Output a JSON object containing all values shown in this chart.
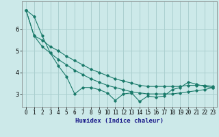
{
  "xlabel": "Humidex (Indice chaleur)",
  "ylabel": "",
  "bg_color": "#cce9e9",
  "grid_color": "#aacfcf",
  "line_color": "#1a7a6a",
  "xlim": [
    -0.5,
    23.5
  ],
  "ylim": [
    2.4,
    7.3
  ],
  "xticks": [
    0,
    1,
    2,
    3,
    4,
    5,
    6,
    7,
    8,
    9,
    10,
    11,
    12,
    13,
    14,
    15,
    16,
    17,
    18,
    19,
    20,
    21,
    22,
    23
  ],
  "yticks": [
    3,
    4,
    5,
    6
  ],
  "series": [
    [
      6.9,
      6.6,
      5.7,
      4.9,
      4.3,
      3.8,
      3.0,
      3.3,
      3.3,
      3.2,
      3.05,
      2.7,
      3.0,
      3.05,
      2.65,
      2.9,
      2.85,
      2.9,
      3.2,
      3.3,
      3.55,
      3.45,
      3.35,
      3.3
    ],
    [
      6.9,
      5.7,
      5.2,
      4.9,
      4.6,
      4.35,
      4.1,
      3.9,
      3.7,
      3.55,
      3.4,
      3.3,
      3.2,
      3.1,
      3.05,
      3.0,
      3.0,
      3.0,
      3.0,
      3.05,
      3.1,
      3.15,
      3.2,
      3.3
    ],
    [
      6.9,
      5.7,
      5.5,
      5.2,
      5.0,
      4.75,
      4.55,
      4.35,
      4.15,
      4.0,
      3.85,
      3.7,
      3.6,
      3.5,
      3.4,
      3.35,
      3.35,
      3.35,
      3.35,
      3.35,
      3.4,
      3.4,
      3.4,
      3.35
    ]
  ],
  "xlabel_fontsize": 6.5,
  "xlabel_color": "#1a1a8a",
  "tick_fontsize": 5.5
}
